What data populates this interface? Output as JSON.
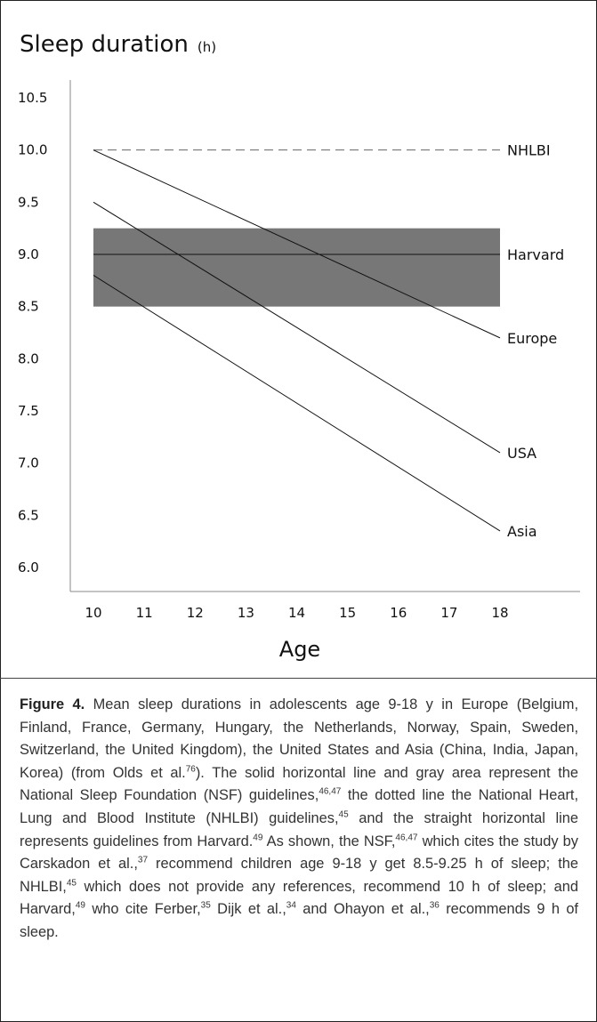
{
  "chart_data": {
    "type": "line",
    "title": "Sleep duration",
    "title_unit": "(h)",
    "xlabel": "Age",
    "ylabel": "",
    "xlim": [
      10,
      18
    ],
    "ylim": [
      6.0,
      10.5
    ],
    "x_ticks": [
      "10",
      "11",
      "12",
      "13",
      "14",
      "15",
      "16",
      "17",
      "18"
    ],
    "y_ticks": [
      "10.5",
      "10.0",
      "9.5",
      "9.0",
      "8.5",
      "8.0",
      "7.5",
      "7.0",
      "6.5",
      "6.0"
    ],
    "band": {
      "ymin": 8.5,
      "ymax": 9.25,
      "color": "#777777"
    },
    "series": [
      {
        "name": "NHLBI",
        "x": [
          10,
          18
        ],
        "y": [
          10.0,
          10.0
        ],
        "style": "dashed"
      },
      {
        "name": "Harvard",
        "x": [
          10,
          18
        ],
        "y": [
          9.0,
          9.0
        ],
        "style": "solid"
      },
      {
        "name": "Europe",
        "x": [
          10,
          18
        ],
        "y": [
          10.0,
          8.2
        ],
        "style": "solid"
      },
      {
        "name": "USA",
        "x": [
          10,
          18
        ],
        "y": [
          9.5,
          7.1
        ],
        "style": "solid"
      },
      {
        "name": "Asia",
        "x": [
          10,
          18
        ],
        "y": [
          8.8,
          6.35
        ],
        "style": "solid"
      }
    ]
  },
  "caption": {
    "label": "Figure 4.",
    "segments": [
      {
        "t": " Mean sleep durations in adolescents age 9-18 y in Europe (Belgium, Finland, France, Germany, Hungary, the Netherlands, Norway, Spain, Sweden, Switzerland, the United Kingdom), the United States and Asia (China, India, Japan, Korea) (from Olds et al."
      },
      {
        "s": "76"
      },
      {
        "t": "). The solid horizontal line and gray area represent the National Sleep Foundation (NSF) guidelines,"
      },
      {
        "s": "46,47"
      },
      {
        "t": " the dotted line the National Heart, Lung and Blood Institute (NHLBI) guidelines,"
      },
      {
        "s": "45"
      },
      {
        "t": " and the straight horizontal line represents guidelines from Harvard."
      },
      {
        "s": "49"
      },
      {
        "t": " As shown, the NSF,"
      },
      {
        "s": "46,47"
      },
      {
        "t": " which cites the study by Carskadon et al.,"
      },
      {
        "s": "37"
      },
      {
        "t": " recommend children age 9-18 y get 8.5-9.25 h of sleep; the NHLBI,"
      },
      {
        "s": "45"
      },
      {
        "t": " which does not provide any references, recommend 10 h of sleep; and Harvard,"
      },
      {
        "s": "49"
      },
      {
        "t": " who cite Ferber,"
      },
      {
        "s": "35"
      },
      {
        "t": " Dijk et al.,"
      },
      {
        "s": "34"
      },
      {
        "t": " and Ohayon et al.,"
      },
      {
        "s": "36"
      },
      {
        "t": " recommends 9 h of sleep."
      }
    ]
  }
}
